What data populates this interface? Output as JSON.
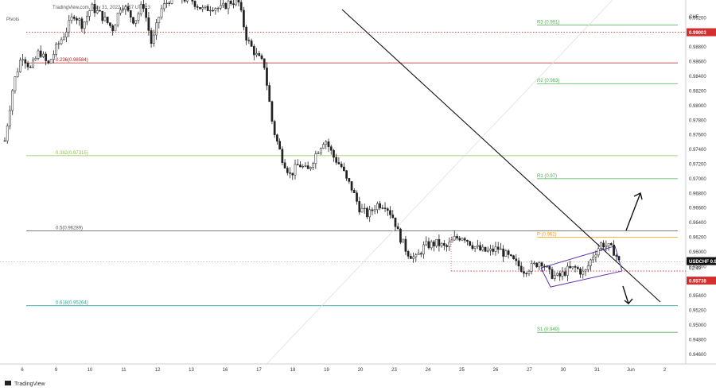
{
  "header": {
    "source": "TradingView.com, May 31, 2022 17:57 UTC+3",
    "indicator": "Pivots",
    "currency": "CHF"
  },
  "footer": {
    "brand": "TradingView"
  },
  "chart_data": {
    "type": "candlestick",
    "symbol": "USDCHF",
    "price_label": "0.95863",
    "countdown": "02:49",
    "support_label": "0.95738",
    "resistance_label": "0.99003",
    "ylim": [
      0.945,
      0.994
    ],
    "y_ticks": [
      "0.99200",
      "0.98800",
      "0.98600",
      "0.98400",
      "0.98200",
      "0.98000",
      "0.97800",
      "0.97600",
      "0.97400",
      "0.97200",
      "0.97000",
      "0.96800",
      "0.96600",
      "0.96400",
      "0.96200",
      "0.96000",
      "0.95800",
      "0.95600",
      "0.95400",
      "0.95200",
      "0.95000",
      "0.94800",
      "0.94600"
    ],
    "x_ticks": [
      "6",
      "9",
      "10",
      "11",
      "12",
      "13",
      "16",
      "17",
      "18",
      "19",
      "20",
      "23",
      "24",
      "25",
      "26",
      "27",
      "30",
      "31",
      "Jun",
      "2"
    ],
    "fib_levels": [
      {
        "label": "0.236(0.98584)",
        "value": 0.98584,
        "color": "#b71c1c"
      },
      {
        "label": "0.382(0.97315)",
        "value": 0.97315,
        "color": "#8bc34a"
      },
      {
        "label": "0.5(0.96289)",
        "value": 0.96289,
        "color": "#555555"
      },
      {
        "label": "0.618(0.95264)",
        "value": 0.95264,
        "color": "#26a69a"
      }
    ],
    "pivot_levels": [
      {
        "label": "R3 (0.991)",
        "value": 0.991,
        "color": "#4caf50"
      },
      {
        "label": "R2 (0.983)",
        "value": 0.983,
        "color": "#4caf50"
      },
      {
        "label": "R1 (0.97)",
        "value": 0.97,
        "color": "#4caf50"
      },
      {
        "label": "P (0.962)",
        "value": 0.962,
        "color": "#ff9800"
      },
      {
        "label": "S1 (0.949)",
        "value": 0.949,
        "color": "#4caf50"
      }
    ],
    "price_path": [
      [
        0,
        0.9752
      ],
      [
        2,
        0.983
      ],
      [
        4,
        0.987
      ],
      [
        6,
        0.985
      ],
      [
        8,
        0.9875
      ],
      [
        10,
        0.9855
      ],
      [
        12,
        0.988
      ],
      [
        14,
        0.99
      ],
      [
        16,
        0.9925
      ],
      [
        18,
        0.991
      ],
      [
        20,
        0.9935
      ],
      [
        22,
        0.9925
      ],
      [
        25,
        0.9905
      ],
      [
        27,
        0.994
      ],
      [
        30,
        0.9915
      ],
      [
        32,
        0.994
      ],
      [
        34,
        0.9882
      ],
      [
        36,
        0.993
      ],
      [
        38,
        0.9945
      ],
      [
        40,
        0.9946
      ],
      [
        43,
        0.9946
      ],
      [
        44,
        0.994
      ],
      [
        46,
        0.993
      ],
      [
        48,
        0.9936
      ],
      [
        50,
        0.9932
      ],
      [
        52,
        0.9942
      ],
      [
        54,
        0.9942
      ],
      [
        56,
        0.989
      ],
      [
        58,
        0.987
      ],
      [
        60,
        0.9855
      ],
      [
        62,
        0.977
      ],
      [
        64,
        0.973
      ],
      [
        66,
        0.9705
      ],
      [
        68,
        0.972
      ],
      [
        70,
        0.971
      ],
      [
        72,
        0.9735
      ],
      [
        74,
        0.9755
      ],
      [
        76,
        0.973
      ],
      [
        78,
        0.9715
      ],
      [
        79,
        0.9698
      ],
      [
        80,
        0.969
      ],
      [
        82,
        0.966
      ],
      [
        84,
        0.965
      ],
      [
        86,
        0.9665
      ],
      [
        88,
        0.9665
      ],
      [
        90,
        0.9645
      ],
      [
        91,
        0.9625
      ],
      [
        93,
        0.96
      ],
      [
        95,
        0.959
      ],
      [
        97,
        0.9608
      ],
      [
        100,
        0.9612
      ],
      [
        102,
        0.9605
      ],
      [
        104,
        0.9618
      ],
      [
        106,
        0.9622
      ],
      [
        108,
        0.961
      ],
      [
        110,
        0.9602
      ],
      [
        112,
        0.96
      ],
      [
        114,
        0.9605
      ],
      [
        116,
        0.9595
      ],
      [
        118,
        0.9585
      ],
      [
        120,
        0.9575
      ],
      [
        122,
        0.958
      ],
      [
        124,
        0.9588
      ],
      [
        126,
        0.957
      ],
      [
        128,
        0.9565
      ],
      [
        130,
        0.9575
      ],
      [
        132,
        0.9578
      ],
      [
        134,
        0.957
      ],
      [
        136,
        0.9595
      ],
      [
        138,
        0.9612
      ],
      [
        140,
        0.9605
      ],
      [
        141,
        0.96
      ],
      [
        142,
        0.9586
      ]
    ],
    "trendline_label": "descending trendline",
    "channel": "ascending channel"
  }
}
